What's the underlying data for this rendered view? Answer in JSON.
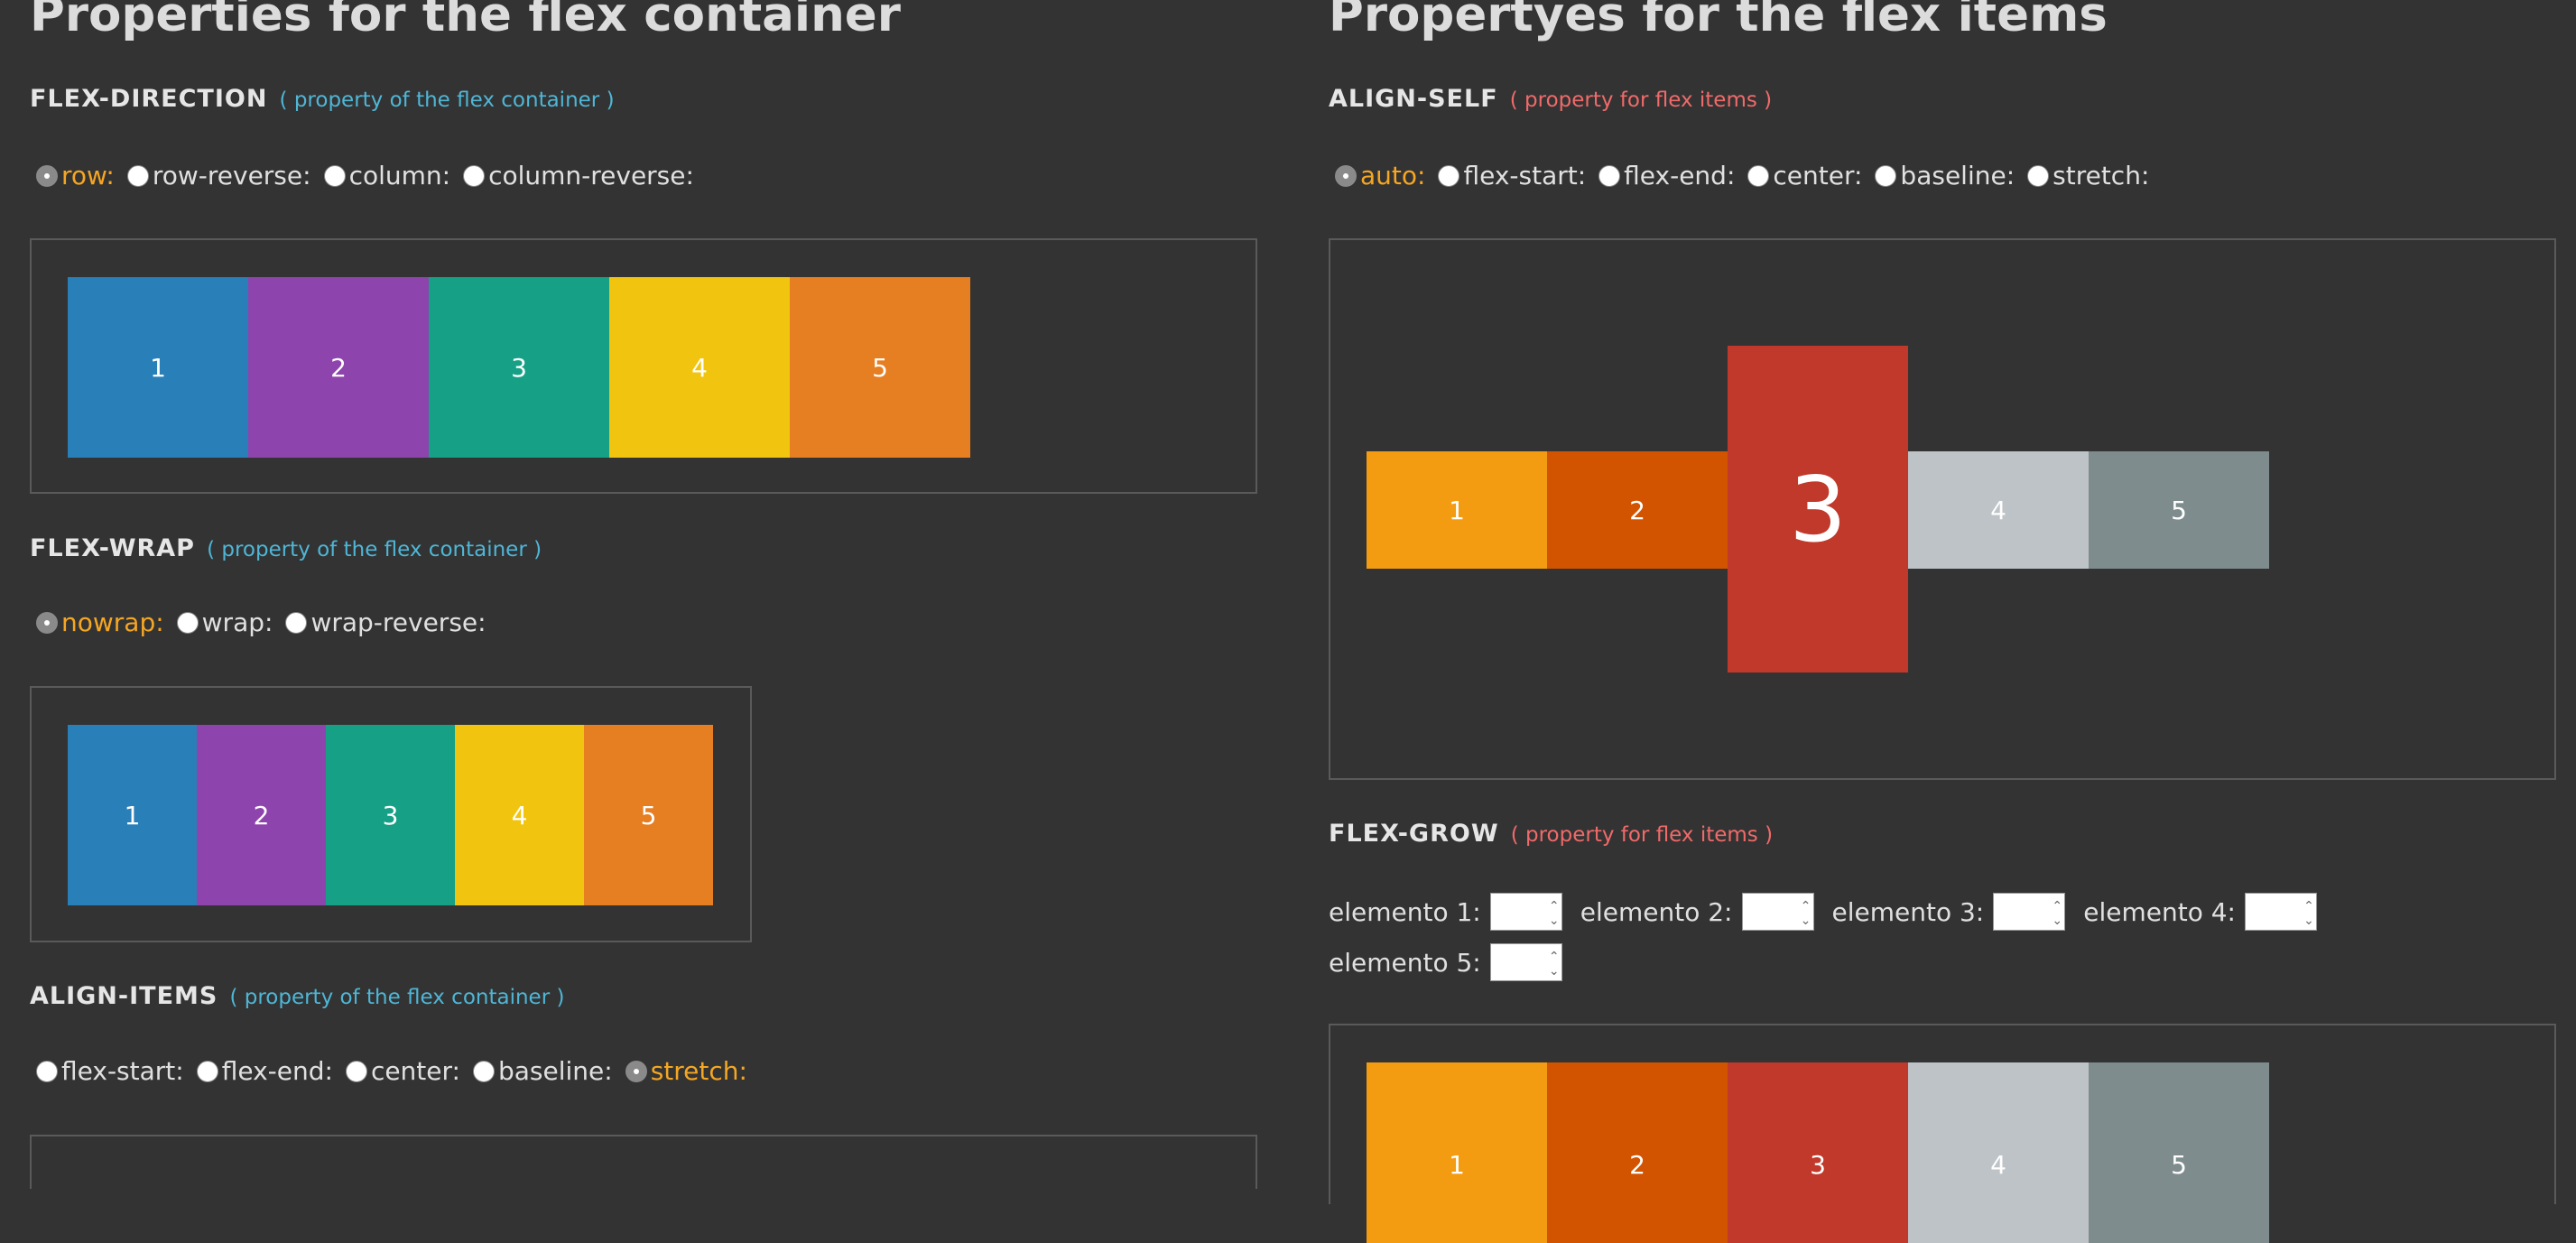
{
  "left": {
    "title": "Properties for the flex container",
    "flex_direction": {
      "name": "FLEX-DIRECTION",
      "note": "( property of the flex container )",
      "options": [
        {
          "label": "row:",
          "selected": true
        },
        {
          "label": "row-reverse:",
          "selected": false
        },
        {
          "label": "column:",
          "selected": false
        },
        {
          "label": "column-reverse:",
          "selected": false
        }
      ],
      "items": [
        "1",
        "2",
        "3",
        "4",
        "5"
      ]
    },
    "flex_wrap": {
      "name": "FLEX-WRAP",
      "note": "( property of the flex container )",
      "options": [
        {
          "label": "nowrap:",
          "selected": true
        },
        {
          "label": "wrap:",
          "selected": false
        },
        {
          "label": "wrap-reverse:",
          "selected": false
        }
      ],
      "items": [
        "1",
        "2",
        "3",
        "4",
        "5"
      ]
    },
    "align_items": {
      "name": "ALIGN-ITEMS",
      "note": "( property of the flex container )",
      "options": [
        {
          "label": "flex-start:",
          "selected": false
        },
        {
          "label": "flex-end:",
          "selected": false
        },
        {
          "label": "center:",
          "selected": false
        },
        {
          "label": "baseline:",
          "selected": false
        },
        {
          "label": "stretch:",
          "selected": true
        }
      ]
    }
  },
  "right": {
    "title": "Propertyes for the flex items",
    "align_self": {
      "name": "ALIGN-SELF",
      "note": "( property for flex items )",
      "options": [
        {
          "label": "auto:",
          "selected": true
        },
        {
          "label": "flex-start:",
          "selected": false
        },
        {
          "label": "flex-end:",
          "selected": false
        },
        {
          "label": "center:",
          "selected": false
        },
        {
          "label": "baseline:",
          "selected": false
        },
        {
          "label": "stretch:",
          "selected": false
        }
      ],
      "items": [
        "1",
        "2",
        "3",
        "4",
        "5"
      ]
    },
    "flex_grow": {
      "name": "FLEX-GROW",
      "note": "( property for flex items )",
      "fields": [
        {
          "label": "elemento 1:",
          "value": ""
        },
        {
          "label": "elemento 2:",
          "value": ""
        },
        {
          "label": "elemento 3:",
          "value": ""
        },
        {
          "label": "elemento 4:",
          "value": ""
        },
        {
          "label": "elemento 5:",
          "value": ""
        }
      ],
      "items": [
        "1",
        "2",
        "3",
        "4",
        "5"
      ]
    }
  },
  "colors": {
    "container_items": [
      "#2980b9",
      "#8e44ad",
      "#16a085",
      "#f1c40f",
      "#e67e22"
    ],
    "flex_items": [
      "#f39c12",
      "#d35400",
      "#c0392b",
      "#bdc3c7",
      "#7f8c8d"
    ],
    "accent": "#f5a623",
    "note_blue": "#4fb6d6",
    "note_red": "#f06a6a"
  }
}
